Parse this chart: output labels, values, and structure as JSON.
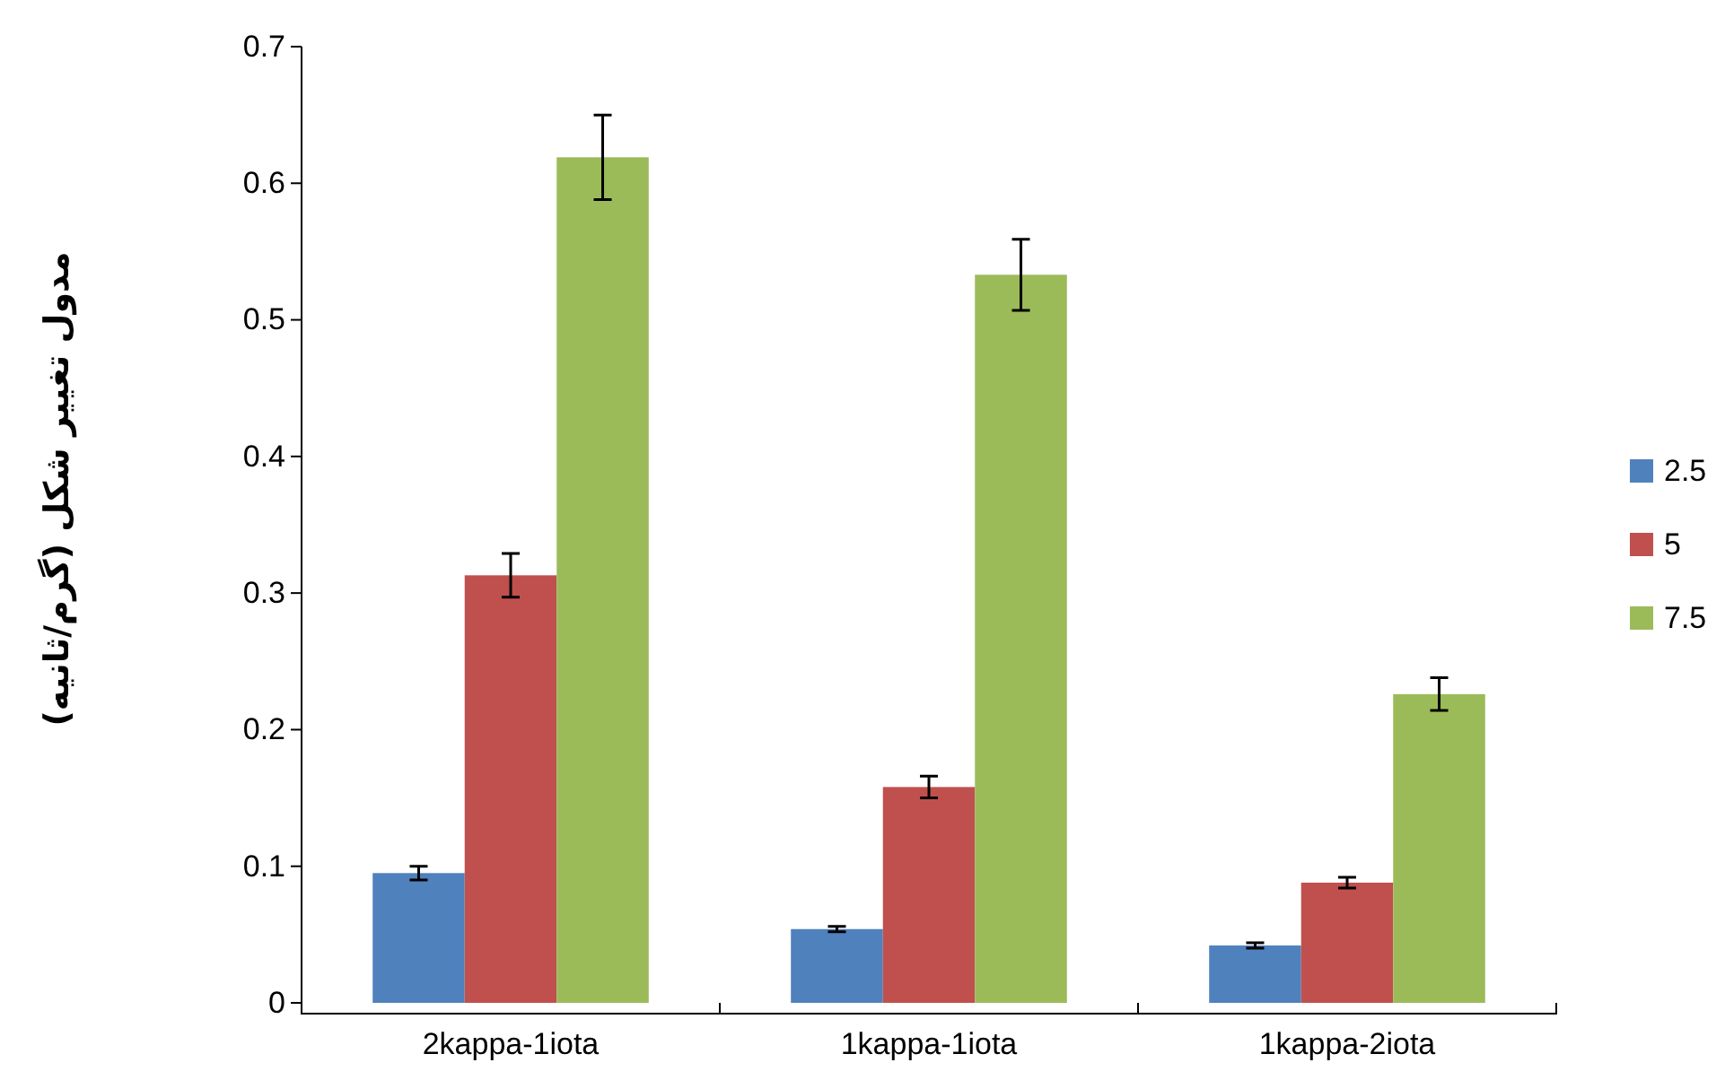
{
  "chart_data": {
    "type": "bar",
    "ylabel": "مدول تغییر شکل (گرم/ثانیه)",
    "categories": [
      "2kappa-1iota",
      "1kappa-1iota",
      "1kappa-2iota"
    ],
    "series": [
      {
        "name": "2.5",
        "color": "#4f81bd",
        "values": [
          0.095,
          0.054,
          0.042
        ],
        "errors": [
          0.005,
          0.002,
          0.002
        ]
      },
      {
        "name": "5",
        "color": "#c0504d",
        "values": [
          0.313,
          0.158,
          0.088
        ],
        "errors": [
          0.016,
          0.008,
          0.004
        ]
      },
      {
        "name": "7.5",
        "color": "#9bbb59",
        "values": [
          0.619,
          0.533,
          0.226
        ],
        "errors": [
          0.031,
          0.026,
          0.012
        ]
      }
    ],
    "ylim": [
      0,
      0.7
    ],
    "yticks": [
      0,
      0.1,
      0.2,
      0.3,
      0.4,
      0.5,
      0.6,
      0.7
    ],
    "grid": false,
    "legend": "right"
  }
}
